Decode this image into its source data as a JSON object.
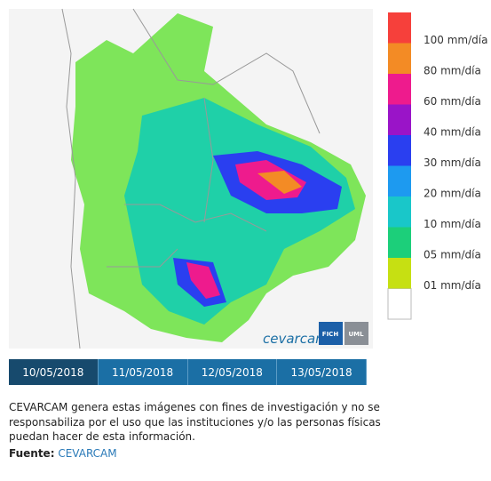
{
  "legend": [
    {
      "label": "100 mm/día",
      "color": "#f6403b"
    },
    {
      "label": "80 mm/día",
      "color": "#f38b25"
    },
    {
      "label": "60 mm/día",
      "color": "#ee1b8d"
    },
    {
      "label": "40 mm/día",
      "color": "#9a14c8"
    },
    {
      "label": "30 mm/día",
      "color": "#2a3ff0"
    },
    {
      "label": "20 mm/día",
      "color": "#1d9af0"
    },
    {
      "label": "10 mm/día",
      "color": "#19c7c9"
    },
    {
      "label": "05 mm/día",
      "color": "#1ccf7a"
    },
    {
      "label": "01 mm/día",
      "color": "#c6e012"
    }
  ],
  "logo": {
    "name": "cevarcam",
    "badges": [
      "FICH",
      "UML"
    ]
  },
  "tabs": {
    "dates": [
      "10/05/2018",
      "11/05/2018",
      "12/05/2018",
      "13/05/2018"
    ],
    "selected": 0
  },
  "disclaimer": {
    "text": "CEVARCAM genera estas imágenes con fines de investigación y no se responsabiliza por el uso que las instituciones y/o las personas físicas puedan hacer de esta información.",
    "source_label": "Fuente:",
    "source_link": "CEVARCAM"
  }
}
